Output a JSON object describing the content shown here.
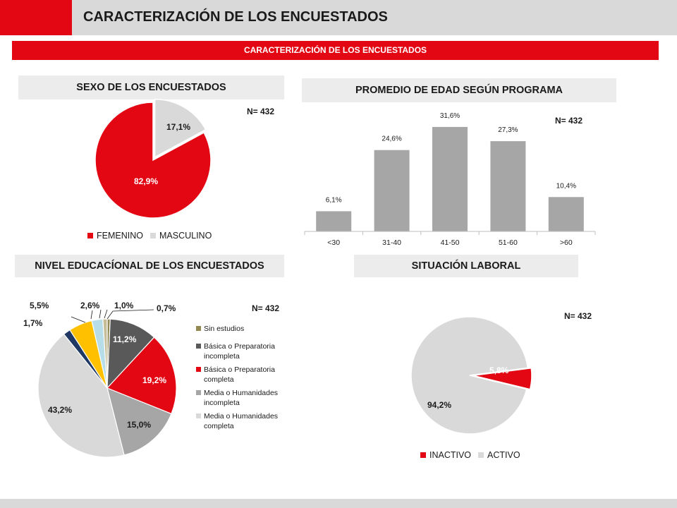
{
  "header": {
    "title": "CARACTERIZACIÓN DE LOS ENCUESTADOS"
  },
  "banner": {
    "text": "CARACTERIZACIÓN DE LOS ENCUESTADOS"
  },
  "colors": {
    "red": "#e30613",
    "light_gray": "#d9d9d9",
    "mid_gray": "#a6a6a6",
    "dark_gray": "#595959"
  },
  "chart_data": [
    {
      "type": "pie",
      "title": "SEXO DE LOS ENCUESTADOS",
      "n_label": "N= 432",
      "legend_position": "bottom",
      "slices": [
        {
          "name": "FEMENINO",
          "value": 82.9,
          "label": "82,9%",
          "color": "#e30613"
        },
        {
          "name": "MASCULINO",
          "value": 17.1,
          "label": "17,1%",
          "color": "#d9d9d9"
        }
      ]
    },
    {
      "type": "bar",
      "title": "PROMEDIO DE EDAD SEGÚN PROGRAMA",
      "n_label": "N= 432",
      "categories": [
        "<30",
        "31-40",
        "41-50",
        "51-60",
        ">60"
      ],
      "values": [
        6.1,
        24.6,
        31.6,
        27.3,
        10.4
      ],
      "labels": [
        "6,1%",
        "24,6%",
        "31,6%",
        "27,3%",
        "10,4%"
      ],
      "ylim": [
        0,
        35
      ],
      "color": "#a6a6a6"
    },
    {
      "type": "pie",
      "title": "NIVEL EDUCACÍONAL DE LOS ENCUESTADOS",
      "n_label": "N= 432",
      "legend_position": "right",
      "slices": [
        {
          "name": "Sin estudios",
          "value": 0.7,
          "label": "0,7%",
          "color": "#938953"
        },
        {
          "name": "Básica o Preparatoria incompleta",
          "value": 11.2,
          "label": "11,2%",
          "color": "#595959"
        },
        {
          "name": "Básica o Preparatoria completa",
          "value": 19.2,
          "label": "19,2%",
          "color": "#e30613"
        },
        {
          "name": "Media o Humanidades incompleta",
          "value": 15.0,
          "label": "15,0%",
          "color": "#a6a6a6"
        },
        {
          "name": "Media o Humanidades completa",
          "value": 43.2,
          "label": "43,2%",
          "color": "#d9d9d9"
        },
        {
          "name": "",
          "value": 1.7,
          "label": "1,7%",
          "color": "#1f3864"
        },
        {
          "name": "",
          "value": 5.5,
          "label": "5,5%",
          "color": "#ffc000"
        },
        {
          "name": "",
          "value": 2.6,
          "label": "2,6%",
          "color": "#b7dde8"
        },
        {
          "name": "",
          "value": 1.0,
          "label": "1,0%",
          "color": "#c4bd97"
        }
      ]
    },
    {
      "type": "pie",
      "title": "SITUACIÓN LABORAL",
      "n_label": "N= 432",
      "legend_position": "bottom",
      "slices": [
        {
          "name": "INACTIVO",
          "value": 5.8,
          "label": "5,8%",
          "color": "#e30613"
        },
        {
          "name": "ACTIVO",
          "value": 94.2,
          "label": "94,2%",
          "color": "#d9d9d9"
        }
      ]
    }
  ]
}
